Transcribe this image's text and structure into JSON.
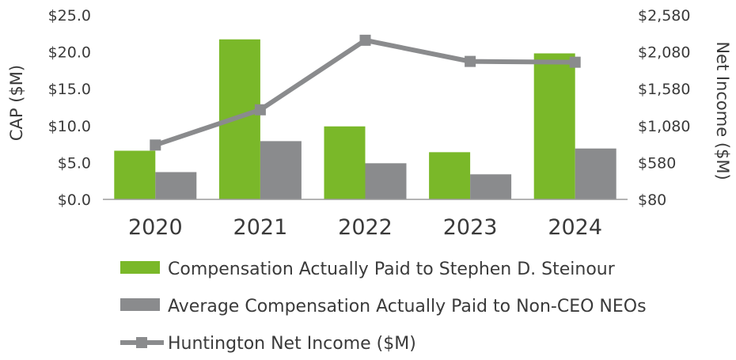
{
  "chart_data": {
    "type": "bar",
    "categories": [
      "2020",
      "2021",
      "2022",
      "2023",
      "2024"
    ],
    "series": [
      {
        "name": "Compensation Actually Paid to Stephen D. Steinour",
        "kind": "bar",
        "axis": "left",
        "color": "#7ab829",
        "values": [
          6.6,
          21.7,
          9.9,
          6.4,
          19.8
        ]
      },
      {
        "name": "Average Compensation Actually Paid to Non-CEO NEOs",
        "kind": "bar",
        "axis": "left",
        "color": "#8a8b8d",
        "values": [
          3.7,
          7.9,
          4.9,
          3.4,
          6.9
        ]
      },
      {
        "name": "Huntington Net Income ($M)",
        "kind": "line",
        "axis": "right",
        "color": "#8a8b8d",
        "values": [
          817,
          1295,
          2238,
          1951,
          1940
        ]
      }
    ],
    "ylabel": "CAP ($M)",
    "y2label": "Net Income ($M)",
    "ylim": [
      0,
      25
    ],
    "y2lim": [
      80,
      2580
    ],
    "yticks": [
      "$25.0",
      "$20.0",
      "$15.0",
      "$10.0",
      "$5.0",
      "$0.0"
    ],
    "y2ticks": [
      "$2,580",
      "$2,080",
      "$1,580",
      "$1,080",
      "$580",
      "$80"
    ],
    "grid": false,
    "legend_position": "bottom"
  }
}
